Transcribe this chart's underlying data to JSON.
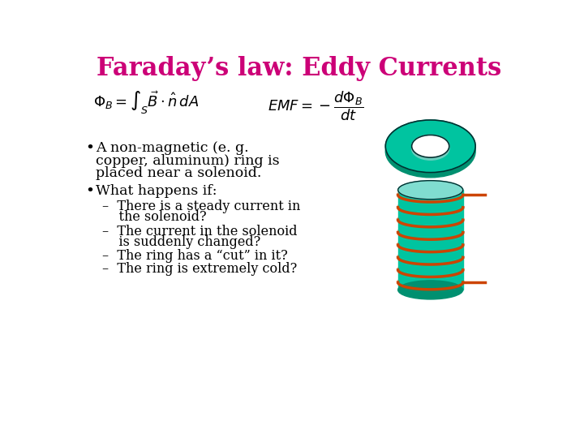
{
  "title": "Faraday’s law: Eddy Currents",
  "title_color": "#CC0077",
  "title_fontsize": 22,
  "bg_color": "#FFFFFF",
  "text_color": "#000000",
  "teal_color": "#00C4A0",
  "teal_light": "#80DDD0",
  "teal_dark": "#009070",
  "coil_color": "#CC4400",
  "bullet1_line1": "A non-magnetic (e. g.",
  "bullet1_line2": "copper, aluminum) ring is",
  "bullet1_line3": "placed near a solenoid.",
  "bullet2": "What happens if:",
  "sub1_line1": "–  There is a steady current in",
  "sub1_line2": "    the solenoid?",
  "sub2_line1": "–  The current in the solenoid",
  "sub2_line2": "    is suddenly changed?",
  "sub3": "–  The ring has a “cut” in it?",
  "sub4": "–  The ring is extremely cold?"
}
